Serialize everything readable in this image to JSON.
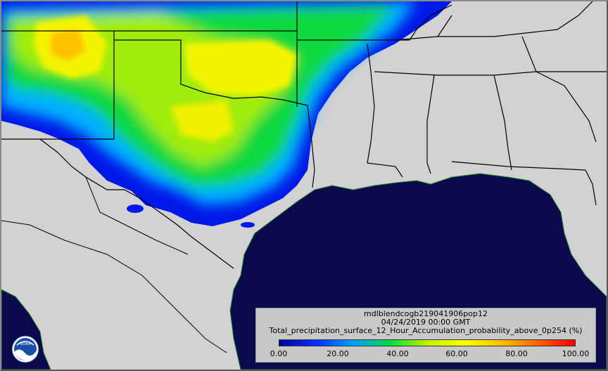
{
  "legend": {
    "product": "mdlblendcogb219041906pop12",
    "valid_time": "04/24/2019 00:00 GMT",
    "variable": "Total_precipitation_surface_12_Hour_Accumulation_probability_above_0p254 (%)",
    "ticks": [
      "0.00",
      "20.00",
      "40.00",
      "60.00",
      "80.00",
      "100.00"
    ],
    "colors": [
      "#0000a0",
      "#0030ff",
      "#00a0ff",
      "#00e040",
      "#c0f000",
      "#ffff00",
      "#ffc000",
      "#ff6000",
      "#ff0000"
    ]
  },
  "logo": {
    "text": "NOAA"
  },
  "map_colors": {
    "ocean": "#0a0a4c",
    "land": "#d2d2d2",
    "border": "#000000",
    "coast": "#2b8c2b"
  }
}
